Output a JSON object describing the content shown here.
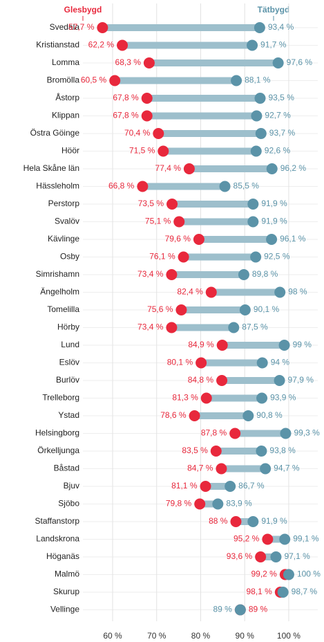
{
  "chart_data": {
    "type": "dumbbell",
    "categories": [
      "Svedala",
      "Kristianstad",
      "Lomma",
      "Bromölla",
      "Åstorp",
      "Klippan",
      "Östra Göinge",
      "Höör",
      "Hela Skåne län",
      "Hässleholm",
      "Perstorp",
      "Svalöv",
      "Kävlinge",
      "Osby",
      "Simrishamn",
      "Ängelholm",
      "Tomelilla",
      "Hörby",
      "Lund",
      "Eslöv",
      "Burlöv",
      "Trelleborg",
      "Ystad",
      "Helsingborg",
      "Örkelljunga",
      "Båstad",
      "Bjuv",
      "Sjöbo",
      "Staffanstorp",
      "Landskrona",
      "Höganäs",
      "Malmö",
      "Skurup",
      "Vellinge"
    ],
    "series": [
      {
        "name": "Glesbygd",
        "color": "#e8283c",
        "values": [
          57.7,
          62.2,
          68.3,
          60.5,
          67.8,
          67.8,
          70.4,
          71.5,
          77.4,
          66.8,
          73.5,
          75.1,
          79.6,
          76.1,
          73.4,
          82.4,
          75.6,
          73.4,
          84.9,
          80.1,
          84.8,
          81.3,
          78.6,
          87.8,
          83.5,
          84.7,
          81.1,
          79.8,
          88,
          95.2,
          93.6,
          99.2,
          98.1,
          89
        ],
        "value_labels": [
          "57,7 %",
          "62,2 %",
          "68,3 %",
          "60,5 %",
          "67,8 %",
          "67,8 %",
          "70,4 %",
          "71,5 %",
          "77,4 %",
          "66,8 %",
          "73,5 %",
          "75,1 %",
          "79,6 %",
          "76,1 %",
          "73,4 %",
          "82,4 %",
          "75,6 %",
          "73,4 %",
          "84,9 %",
          "80,1 %",
          "84,8 %",
          "81,3 %",
          "78,6 %",
          "87,8 %",
          "83,5 %",
          "84,7 %",
          "81,1 %",
          "79,8 %",
          "88 %",
          "95,2 %",
          "93,6 %",
          "99,2 %",
          "98,1 %",
          "89 %"
        ]
      },
      {
        "name": "Tätbygd",
        "color": "#5b93a8",
        "values": [
          93.4,
          91.7,
          97.6,
          88.1,
          93.5,
          92.7,
          93.7,
          92.6,
          96.2,
          85.5,
          91.9,
          91.9,
          96.1,
          92.5,
          89.8,
          98,
          90.1,
          87.5,
          99,
          94,
          97.9,
          93.9,
          90.8,
          99.3,
          93.8,
          94.7,
          86.7,
          83.9,
          91.9,
          99.1,
          97.1,
          100,
          98.7,
          89
        ],
        "value_labels": [
          "93,4 %",
          "91,7 %",
          "97,6 %",
          "88,1 %",
          "93,5 %",
          "92,7 %",
          "93,7 %",
          "92,6 %",
          "96,2 %",
          "85,5 %",
          "91,9 %",
          "91,9 %",
          "96,1 %",
          "92,5 %",
          "89,8 %",
          "98 %",
          "90,1 %",
          "87,5 %",
          "99 %",
          "94 %",
          "97,9 %",
          "93,9 %",
          "90,8 %",
          "99,3 %",
          "93,8 %",
          "94,7 %",
          "86,7 %",
          "83,9 %",
          "91,9 %",
          "99,1 %",
          "97,1 %",
          "100 %",
          "98,7 %",
          "89 %"
        ]
      }
    ],
    "line_color": "#9dbfcc",
    "xlim": [
      53.25,
      106.6
    ],
    "xticks": [
      {
        "value": 60,
        "label": "60 %"
      },
      {
        "value": 70,
        "label": "70 %"
      },
      {
        "value": 80,
        "label": "80 %"
      },
      {
        "value": 90,
        "label": "90 %"
      },
      {
        "value": 100,
        "label": "100 %"
      }
    ],
    "grid": true
  }
}
